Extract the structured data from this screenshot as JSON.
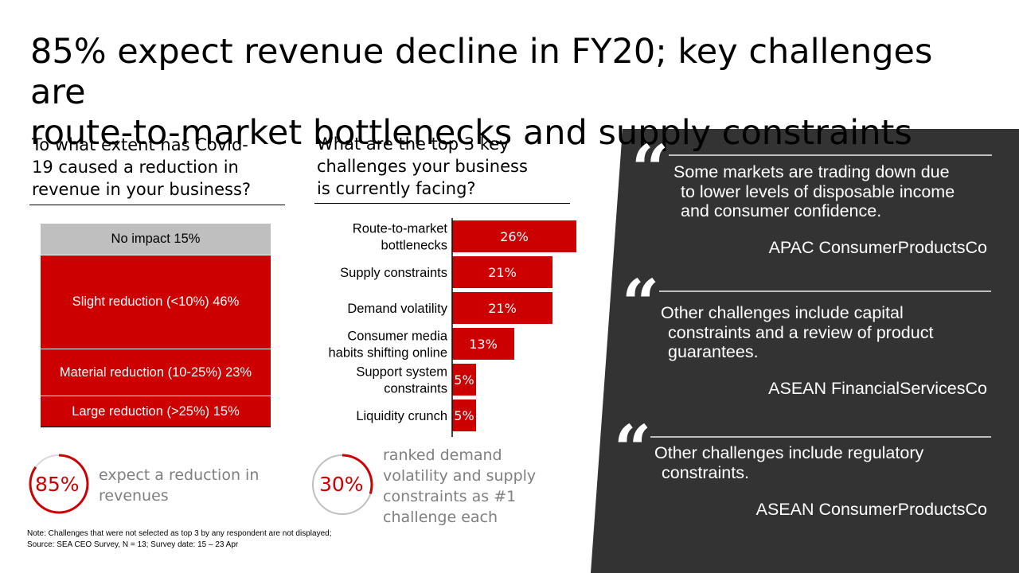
{
  "title": {
    "line1": "85% expect revenue decline in FY20; key challenges are",
    "line2": "route-to-market bottlenecks and supply constraints"
  },
  "left_question": {
    "line1": "To what extent has Covid-",
    "line2": "19 caused a reduction in",
    "line3": "revenue in your business?"
  },
  "mid_question": {
    "line1": "What are the top 3 key",
    "line2": "challenges your business",
    "line3": "is currently facing?"
  },
  "chart_data": [
    {
      "type": "bar",
      "orientation": "stacked-100",
      "categories": [
        "No impact",
        "Slight reduction (<10%)",
        "Material reduction (10-25%)",
        "Large reduction (>25%)"
      ],
      "values": [
        15,
        46,
        23,
        15
      ],
      "labels": [
        "No impact 15%",
        "Slight reduction (<10%) 46%",
        "Material reduction (10-25%) 23%",
        "Large reduction (>25%) 15%"
      ],
      "colors": [
        "#bfbfbf",
        "#cc0000",
        "#cc0000",
        "#cc0000"
      ],
      "title": "To what extent has Covid-19 caused a reduction in revenue in your business?"
    },
    {
      "type": "bar",
      "orientation": "horizontal",
      "categories": [
        [
          "Route-to-market",
          "bottlenecks"
        ],
        [
          "Supply constraints"
        ],
        [
          "Demand volatility"
        ],
        [
          "Consumer media",
          "habits shifting online"
        ],
        [
          "Support system",
          "constraints"
        ],
        [
          "Liquidity crunch"
        ]
      ],
      "values": [
        26,
        21,
        21,
        13,
        5,
        5
      ],
      "value_labels": [
        "26%",
        "21%",
        "21%",
        "13%",
        "5%",
        "5%"
      ],
      "color": "#cc0000",
      "xlim": [
        0,
        26
      ],
      "title": "What are the top 3 key challenges your business is currently facing?"
    }
  ],
  "donut1": {
    "value": 85,
    "label": "85%",
    "text_line1": "expect a reduction in",
    "text_line2": "revenues"
  },
  "donut2": {
    "value": 30,
    "label": "30%",
    "text_line1": "ranked demand",
    "text_line2": "volatility and supply",
    "text_line3": "constraints as #1",
    "text_line4": "challenge each"
  },
  "note": {
    "line1": "Note: Challenges that were not selected as top 3 by any respondent are not displayed;",
    "line2": "Source: SEA CEO Survey, N = 13; Survey date: 15 – 23 Apr"
  },
  "quotes": [
    {
      "mark": "“",
      "lines": [
        "Some markets are trading down due",
        "to lower levels of disposable income",
        "and consumer confidence."
      ],
      "source": "APAC ConsumerProductsCo"
    },
    {
      "mark": "“",
      "lines": [
        "Other challenges include capital",
        "constraints and a review of product",
        "guarantees."
      ],
      "source": "ASEAN FinancialServicesCo"
    },
    {
      "mark": "“",
      "lines": [
        "Other challenges include regulatory",
        "constraints."
      ],
      "source": "ASEAN ConsumerProductsCo"
    }
  ],
  "colors": {
    "accent": "#cc0000",
    "panel": "#333333",
    "grey": "#bfbfbf",
    "muted": "#7f7f7f"
  }
}
